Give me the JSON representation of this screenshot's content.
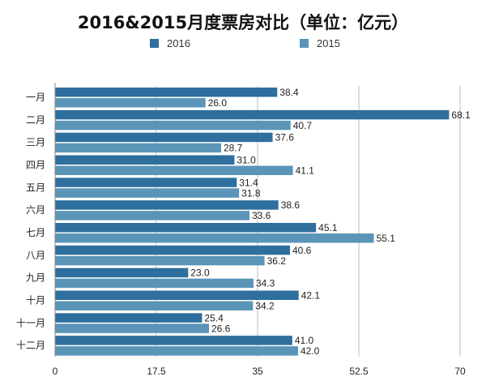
{
  "chart_data": {
    "type": "bar",
    "orientation": "horizontal",
    "title": "2016&2015月度票房对比（单位：亿元）",
    "categories": [
      "一月",
      "二月",
      "三月",
      "四月",
      "五月",
      "六月",
      "七月",
      "八月",
      "九月",
      "十月",
      "十一月",
      "十二月"
    ],
    "series": [
      {
        "name": "2016",
        "color": "#2e6f9e",
        "values": [
          38.4,
          68.1,
          37.6,
          31.0,
          31.4,
          38.6,
          45.1,
          40.6,
          23.0,
          42.1,
          25.4,
          41.0
        ]
      },
      {
        "name": "2015",
        "color": "#5a95b8",
        "values": [
          26.0,
          40.7,
          28.7,
          41.1,
          31.8,
          33.6,
          55.1,
          36.2,
          34.3,
          34.2,
          26.6,
          42.0
        ]
      }
    ],
    "xlim": [
      0,
      70
    ],
    "xticks": [
      "0",
      "17.5",
      "35",
      "52.5",
      "70"
    ],
    "legend_position": "top",
    "grid": true
  }
}
